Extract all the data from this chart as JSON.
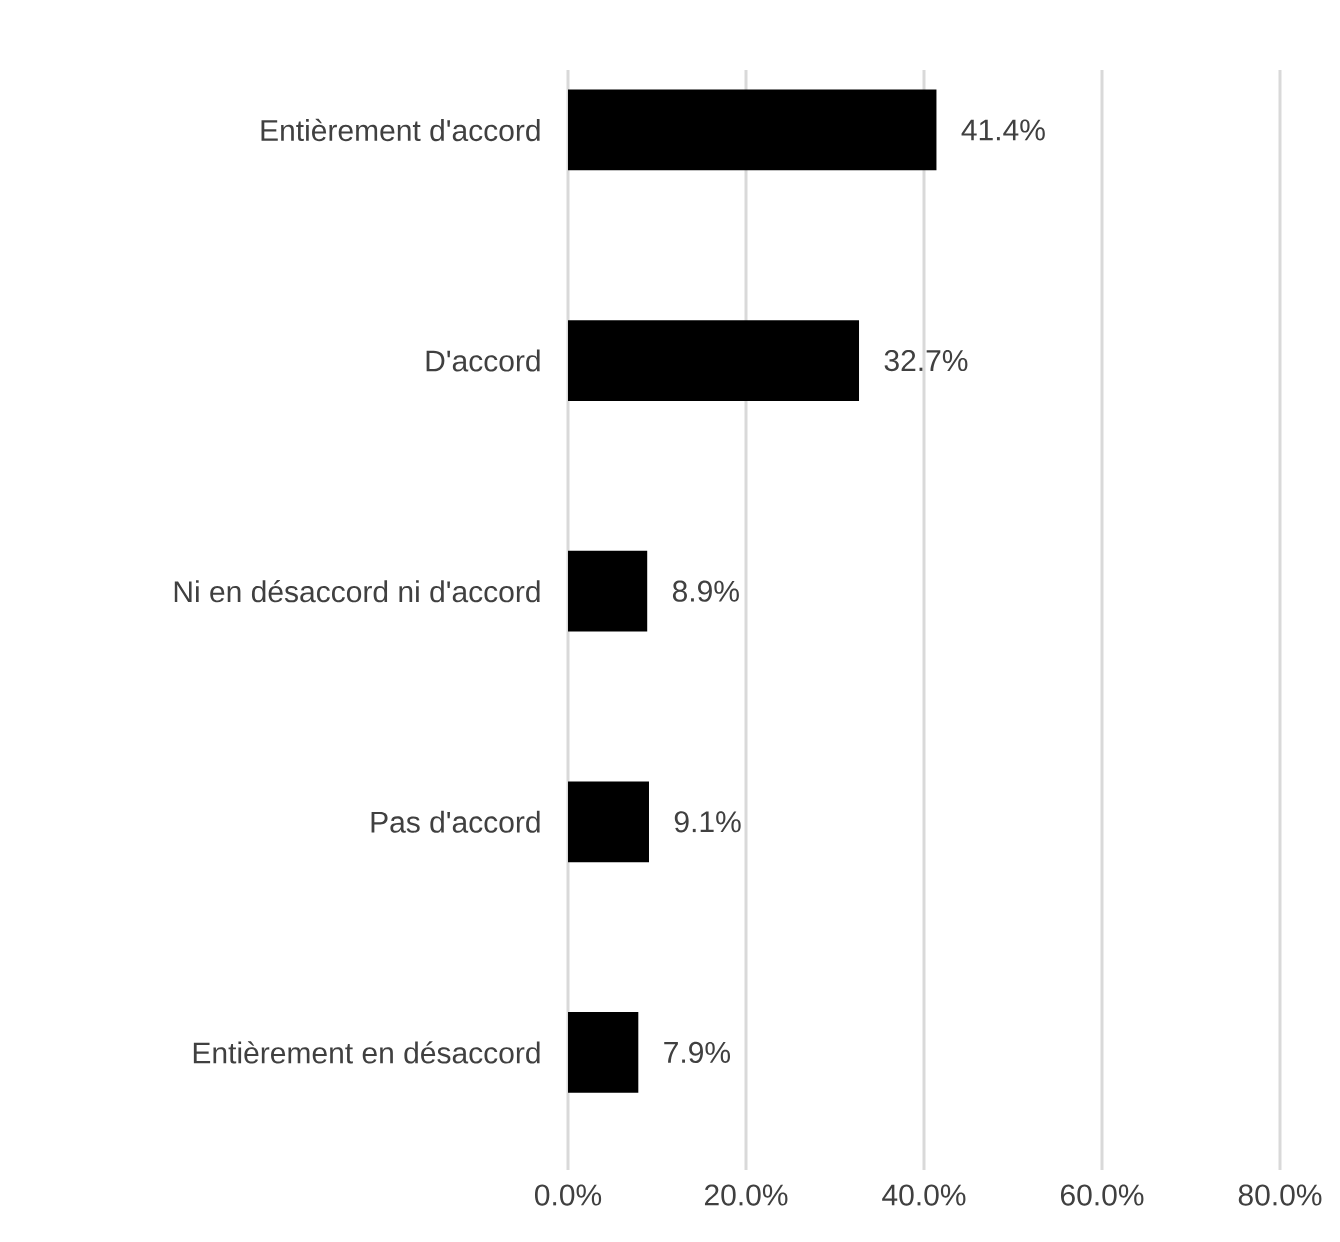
{
  "chart_data": {
    "type": "bar",
    "orientation": "horizontal",
    "categories": [
      "Entièrement d'accord",
      "D'accord",
      "Ni en désaccord ni d'accord",
      "Pas d'accord",
      "Entièrement en désaccord"
    ],
    "values": [
      41.4,
      32.7,
      8.9,
      9.1,
      7.9
    ],
    "value_labels": [
      "41.4%",
      "32.7%",
      "8.9%",
      "9.1%",
      "7.9%"
    ],
    "color": "#000000",
    "xlim": [
      0,
      80
    ],
    "xticks": [
      {
        "value": 0,
        "label": "0.0%"
      },
      {
        "value": 20,
        "label": "20.0%"
      },
      {
        "value": 40,
        "label": "40.0%"
      },
      {
        "value": 60,
        "label": "60.0%"
      },
      {
        "value": 80,
        "label": "80.0%"
      }
    ],
    "grid": "x"
  }
}
